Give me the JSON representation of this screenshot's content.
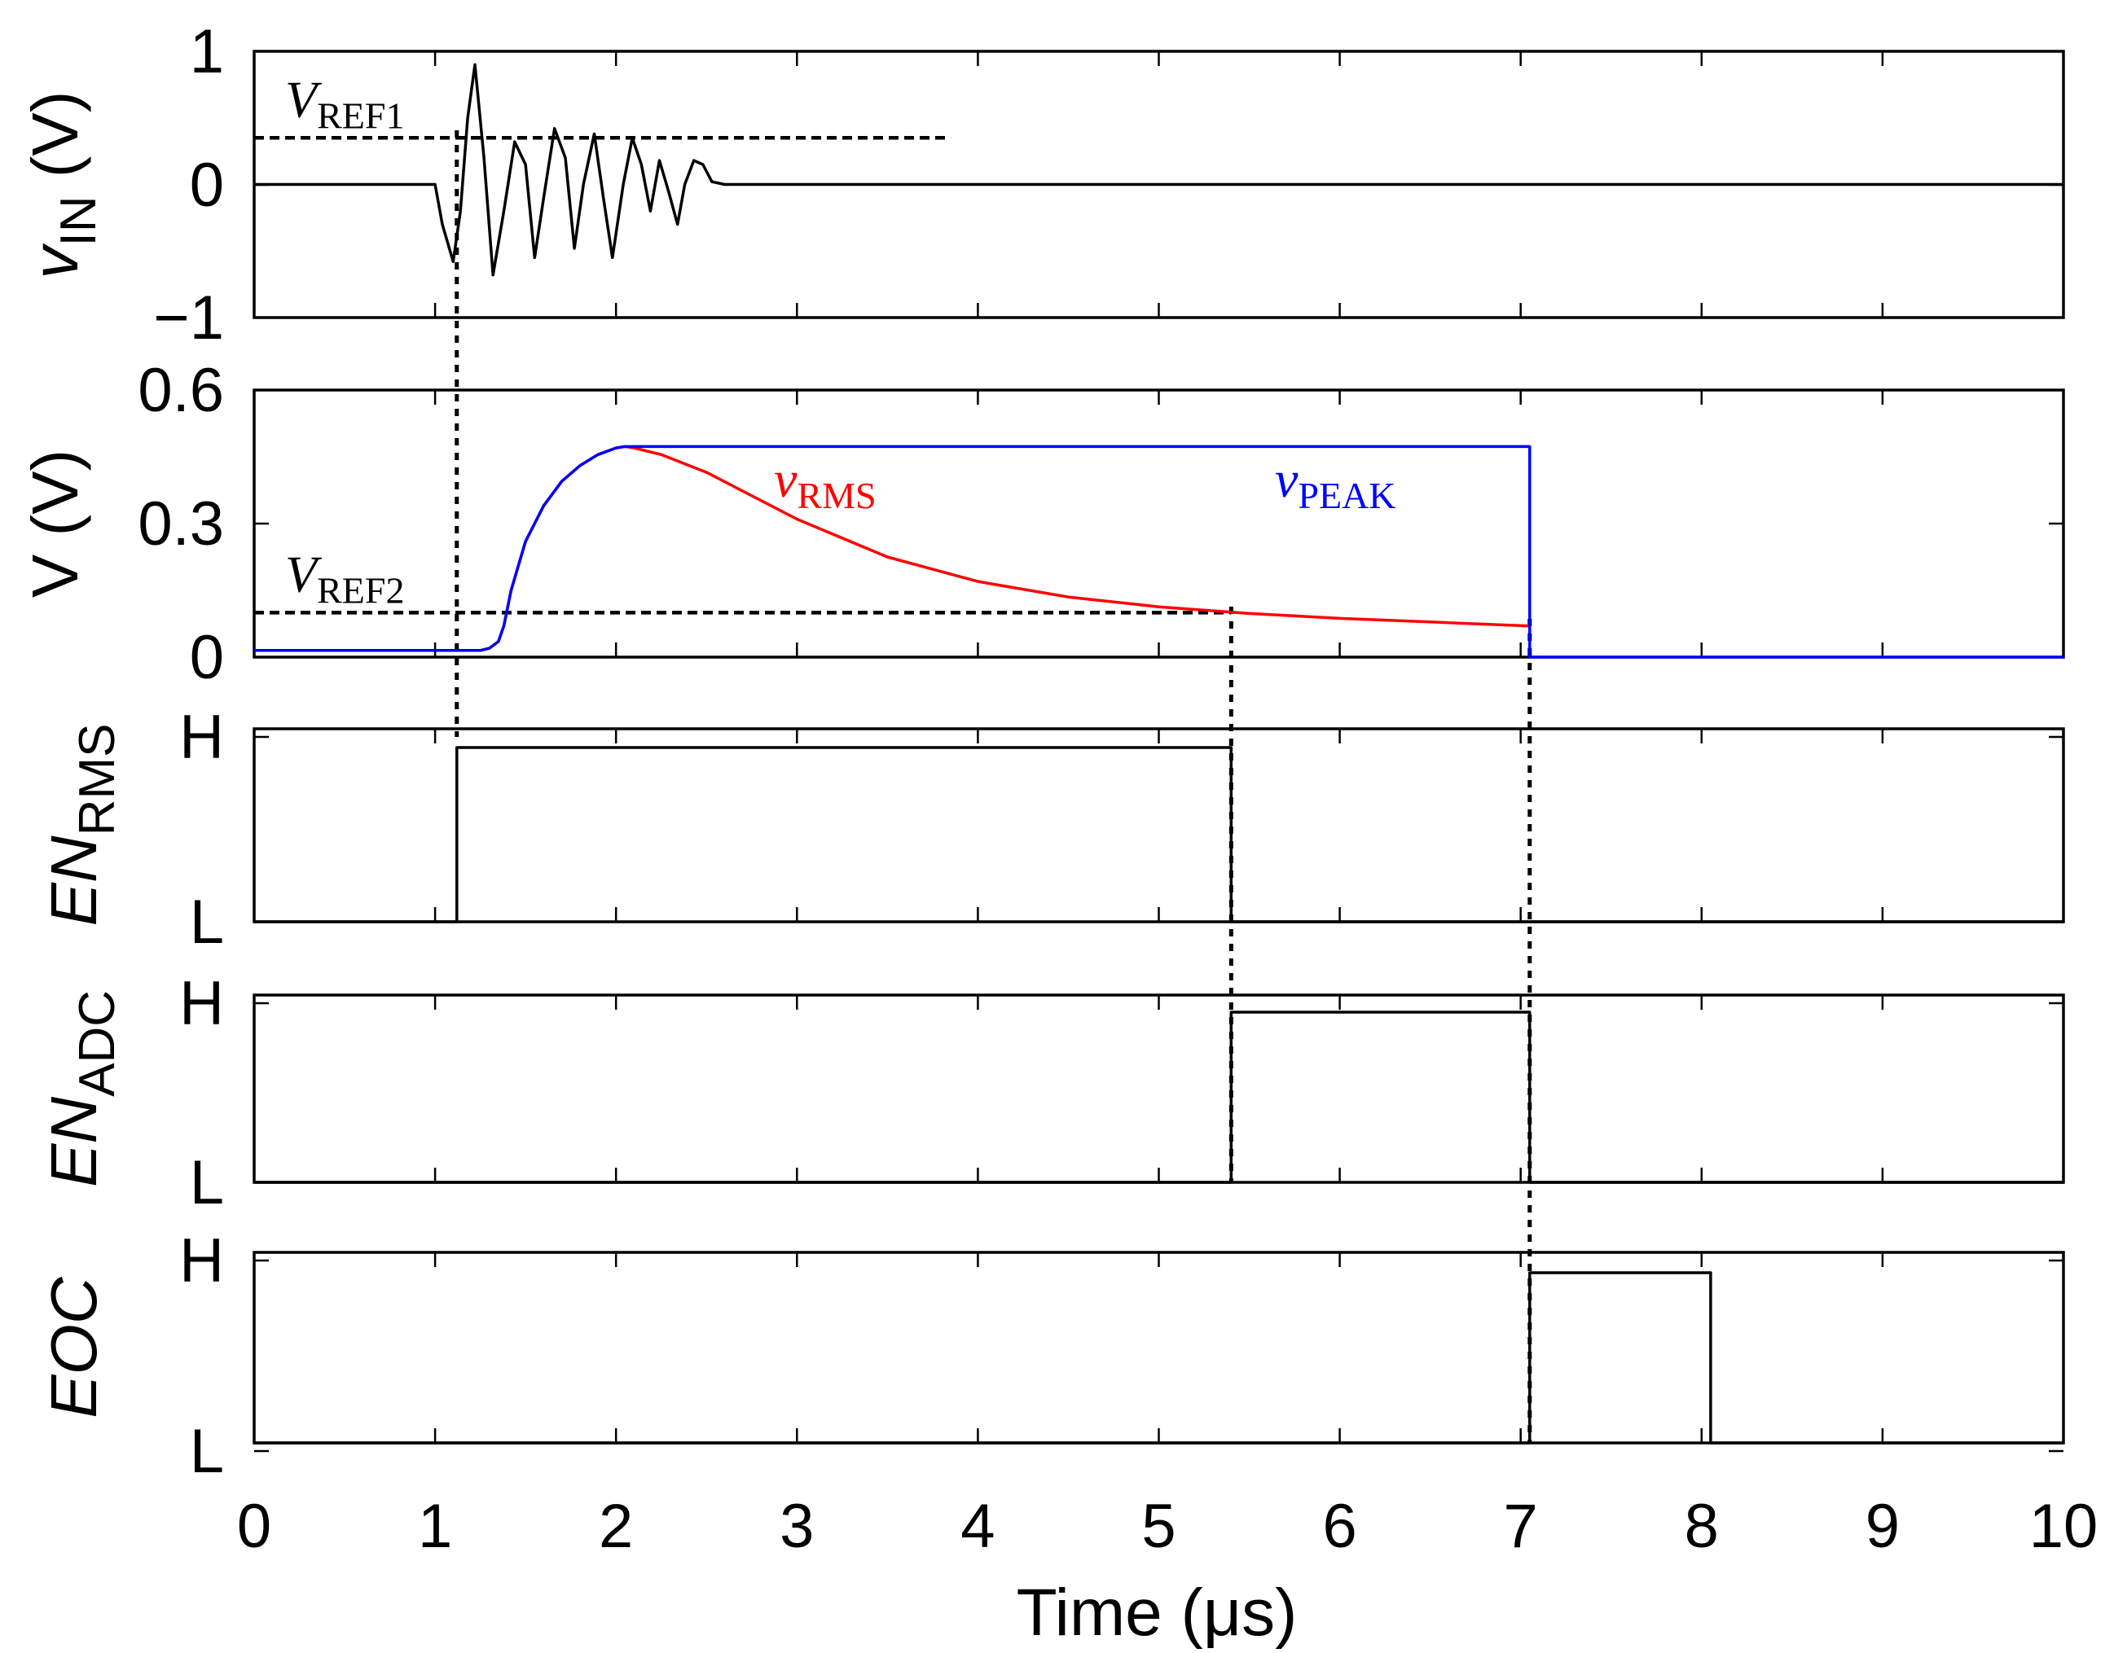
{
  "chart_data": {
    "type": "line",
    "xlabel": "Time (μs)",
    "xlim": [
      0,
      10
    ],
    "xticks": [
      "0",
      "1",
      "2",
      "3",
      "4",
      "5",
      "6",
      "7",
      "8",
      "9",
      "10"
    ],
    "panels": [
      {
        "id": "vin",
        "ylabel_main": "v",
        "ylabel_sub": "IN",
        "ylabel_unit": "(V)",
        "ylim": [
          -1,
          1
        ],
        "yticks": [
          "1",
          "0",
          "−1"
        ],
        "series": [
          {
            "name": "vIN",
            "color": "#000000",
            "x": [
              0,
              1.0,
              1.04,
              1.1,
              1.14,
              1.18,
              1.22,
              1.27,
              1.32,
              1.38,
              1.44,
              1.5,
              1.55,
              1.6,
              1.66,
              1.72,
              1.77,
              1.82,
              1.88,
              1.93,
              1.98,
              2.04,
              2.09,
              2.14,
              2.19,
              2.24,
              2.29,
              2.34,
              2.38,
              2.43,
              2.48,
              2.53,
              2.6,
              10
            ],
            "y": [
              0,
              0,
              -0.3,
              -0.58,
              -0.2,
              0.5,
              0.9,
              0.2,
              -0.68,
              -0.2,
              0.32,
              0.15,
              -0.55,
              -0.1,
              0.42,
              0.2,
              -0.48,
              0.0,
              0.38,
              -0.1,
              -0.55,
              0.0,
              0.35,
              0.15,
              -0.2,
              0.18,
              -0.05,
              -0.3,
              0.0,
              0.18,
              0.15,
              0.02,
              0,
              0
            ]
          }
        ],
        "reference": {
          "label_main": "V",
          "label_sub": "REF1",
          "y": 0.35,
          "x_end": 3.85
        }
      },
      {
        "id": "v",
        "ylabel_main": "V (V)",
        "ylim": [
          0,
          0.6
        ],
        "yticks": [
          "0.6",
          "0.3",
          "0"
        ],
        "series": [
          {
            "name": "vRMS",
            "label_main": "v",
            "label_sub": "RMS",
            "color": "#ff0000",
            "x": [
              0,
              1.25,
              1.3,
              1.35,
              1.38,
              1.42,
              1.5,
              1.6,
              1.7,
              1.8,
              1.9,
              2.0,
              2.05,
              2.1,
              2.25,
              2.5,
              3.0,
              3.5,
              4.0,
              4.5,
              5.0,
              5.5,
              6.0,
              6.5,
              7.05
            ],
            "y": [
              0.015,
              0.015,
              0.02,
              0.035,
              0.07,
              0.15,
              0.26,
              0.34,
              0.395,
              0.43,
              0.455,
              0.47,
              0.473,
              0.47,
              0.455,
              0.415,
              0.31,
              0.225,
              0.17,
              0.135,
              0.113,
              0.098,
              0.087,
              0.079,
              0.07
            ]
          },
          {
            "name": "vPEAK",
            "label_main": "v",
            "label_sub": "PEAK",
            "color": "#0000ff",
            "x": [
              0,
              1.25,
              1.3,
              1.35,
              1.38,
              1.42,
              1.5,
              1.6,
              1.7,
              1.8,
              1.9,
              2.0,
              2.05,
              7.05,
              7.05,
              10
            ],
            "y": [
              0.015,
              0.015,
              0.02,
              0.035,
              0.07,
              0.15,
              0.26,
              0.34,
              0.395,
              0.43,
              0.455,
              0.47,
              0.473,
              0.473,
              0.0,
              0.0
            ]
          }
        ],
        "reference": {
          "label_main": "V",
          "label_sub": "REF2",
          "y": 0.1,
          "x_end": 5.4
        }
      },
      {
        "id": "enrms",
        "ylabel_main": "EN",
        "ylabel_sub": "RMS",
        "yticks": [
          "H",
          "L"
        ],
        "series": [
          {
            "name": "EN_RMS",
            "color": "#000000",
            "x": [
              0,
              1.12,
              1.12,
              5.4,
              5.4,
              10
            ],
            "y": [
              0,
              0,
              0.9,
              0.9,
              0,
              0
            ]
          }
        ]
      },
      {
        "id": "enadc",
        "ylabel_main": "EN",
        "ylabel_sub": "ADC",
        "yticks": [
          "H",
          "L"
        ],
        "series": [
          {
            "name": "EN_ADC",
            "color": "#000000",
            "x": [
              0,
              5.4,
              5.4,
              7.05,
              7.05,
              10
            ],
            "y": [
              0,
              0,
              0.9,
              0.9,
              0,
              0
            ]
          }
        ]
      },
      {
        "id": "eoc",
        "ylabel_main": "EOC",
        "yticks": [
          "H",
          "L"
        ],
        "series": [
          {
            "name": "EOC",
            "color": "#000000",
            "x": [
              0,
              7.05,
              7.05,
              8.05,
              8.05,
              10
            ],
            "y": [
              0,
              0,
              0.9,
              0.9,
              0,
              0
            ]
          }
        ]
      }
    ],
    "event_times": [
      1.12,
      5.4,
      7.05
    ]
  }
}
